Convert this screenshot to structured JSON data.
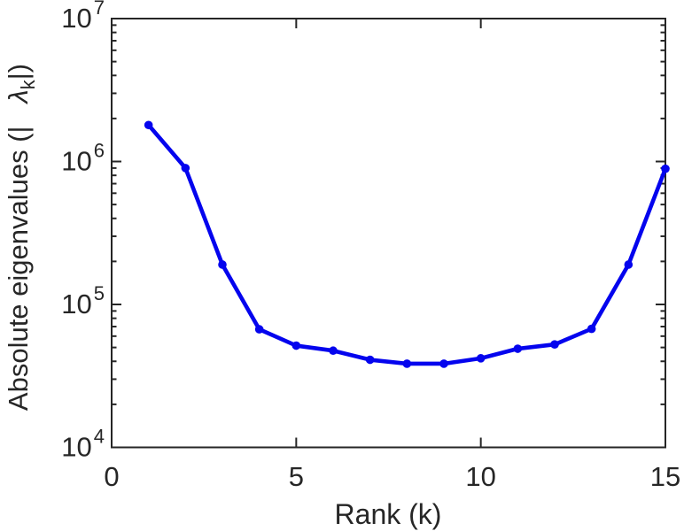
{
  "figure": {
    "background_color": "#ffffff",
    "axis_color": "#262626",
    "text_color": "#262626"
  },
  "chart_data": {
    "type": "line",
    "title": "",
    "xlabel": "Rank (k)",
    "ylabel": {
      "prefix": "Absolute eigenvalues (|   ",
      "symbol": "λ",
      "subscript": "k",
      "suffix": "|)"
    },
    "x": [
      1,
      2,
      3,
      4,
      5,
      6,
      7,
      8,
      9,
      10,
      11,
      12,
      13,
      14,
      15
    ],
    "y": [
      1800000,
      900000,
      190000,
      67000,
      51500,
      47500,
      41000,
      38500,
      38500,
      42000,
      49000,
      52500,
      67500,
      190000,
      890000
    ],
    "series": [
      {
        "name": "absolute-eigenvalues",
        "color": "#0404ee",
        "marker": "circle",
        "line_width": 4.6,
        "marker_radius": 4.8
      }
    ],
    "xlim": [
      0,
      15
    ],
    "ylim": [
      10000,
      10000000
    ],
    "yscale": "log",
    "xticks": [
      0,
      5,
      10,
      15
    ],
    "yticks": [
      {
        "base": "10",
        "exp": "4"
      },
      {
        "base": "10",
        "exp": "5"
      },
      {
        "base": "10",
        "exp": "6"
      },
      {
        "base": "10",
        "exp": "7"
      }
    ],
    "grid": false,
    "legend": "none"
  }
}
